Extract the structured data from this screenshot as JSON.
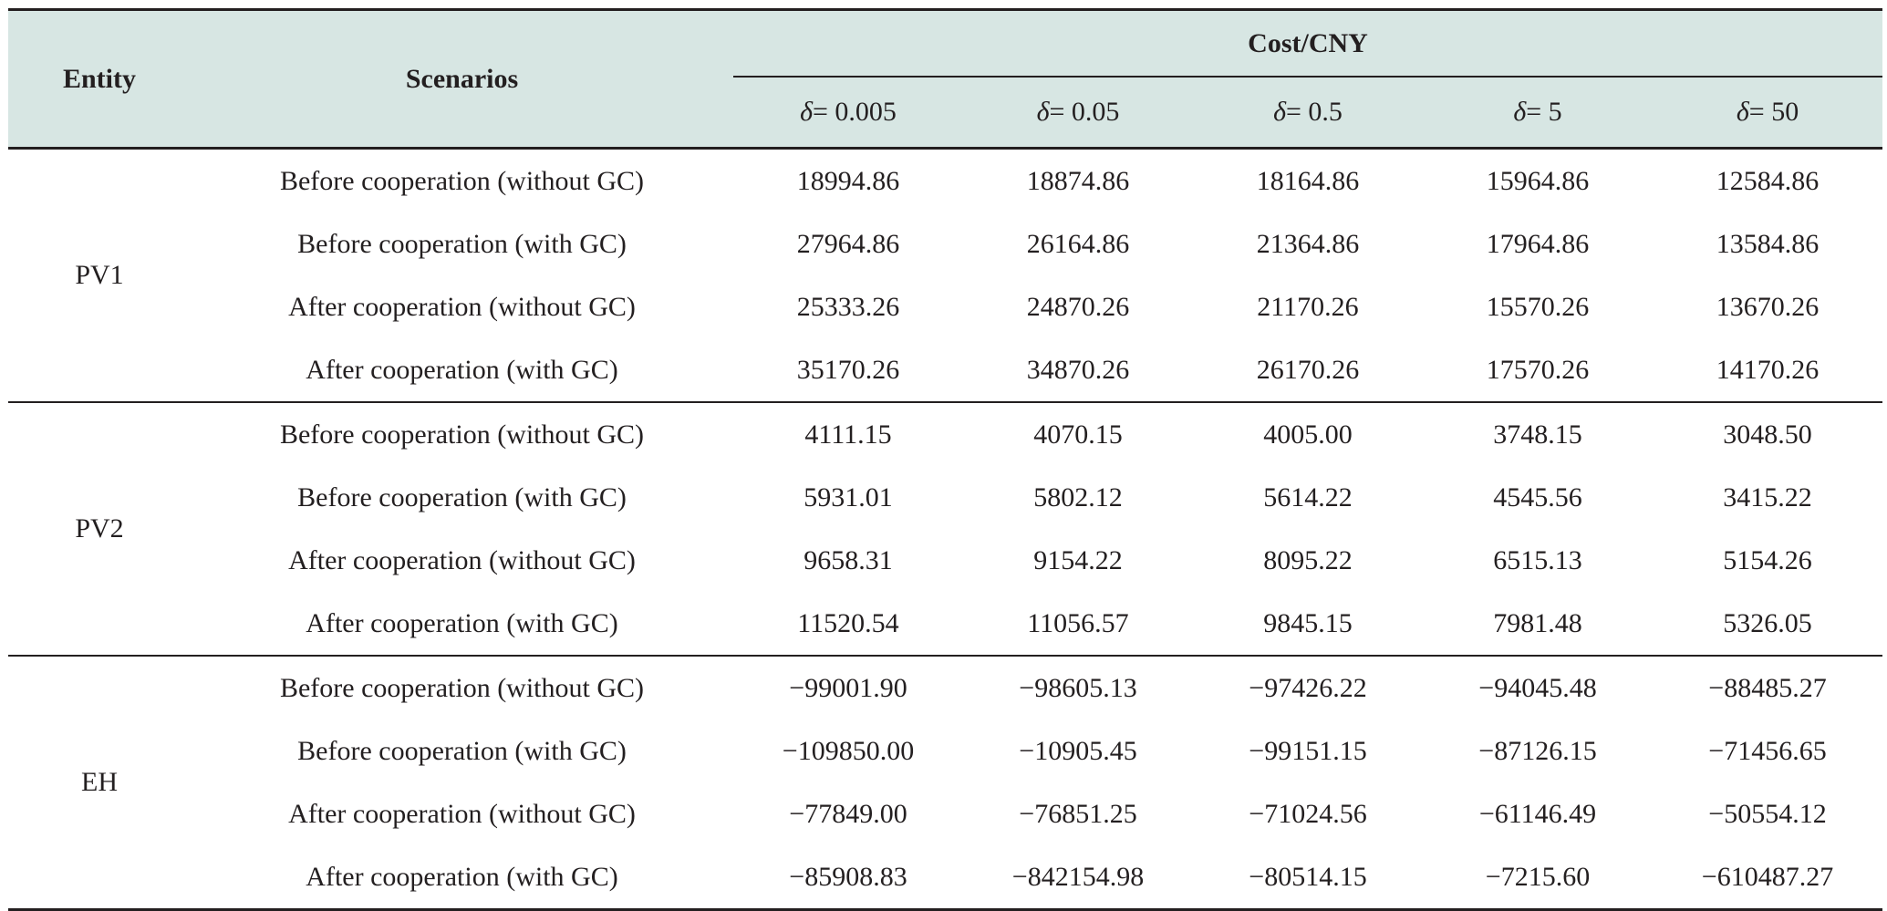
{
  "header": {
    "entity": "Entity",
    "scenarios": "Scenarios",
    "cost_group": "Cost/CNY",
    "delta_symbol": "δ",
    "deltas": [
      "= 0.005",
      "= 0.05",
      "= 0.5",
      "= 5",
      "= 50"
    ]
  },
  "groups": [
    {
      "entity": "PV1",
      "rows": [
        {
          "scenario": "Before cooperation (without GC)",
          "values": [
            "18994.86",
            "18874.86",
            "18164.86",
            "15964.86",
            "12584.86"
          ]
        },
        {
          "scenario": "Before cooperation (with GC)",
          "values": [
            "27964.86",
            "26164.86",
            "21364.86",
            "17964.86",
            "13584.86"
          ]
        },
        {
          "scenario": "After cooperation (without GC)",
          "values": [
            "25333.26",
            "24870.26",
            "21170.26",
            "15570.26",
            "13670.26"
          ]
        },
        {
          "scenario": "After cooperation (with GC)",
          "values": [
            "35170.26",
            "34870.26",
            "26170.26",
            "17570.26",
            "14170.26"
          ]
        }
      ]
    },
    {
      "entity": "PV2",
      "rows": [
        {
          "scenario": "Before cooperation (without GC)",
          "values": [
            "4111.15",
            "4070.15",
            "4005.00",
            "3748.15",
            "3048.50"
          ]
        },
        {
          "scenario": "Before cooperation (with GC)",
          "values": [
            "5931.01",
            "5802.12",
            "5614.22",
            "4545.56",
            "3415.22"
          ]
        },
        {
          "scenario": "After cooperation (without GC)",
          "values": [
            "9658.31",
            "9154.22",
            "8095.22",
            "6515.13",
            "5154.26"
          ]
        },
        {
          "scenario": "After cooperation (with GC)",
          "values": [
            "11520.54",
            "11056.57",
            "9845.15",
            "7981.48",
            "5326.05"
          ]
        }
      ]
    },
    {
      "entity": "EH",
      "rows": [
        {
          "scenario": "Before cooperation (without GC)",
          "values": [
            "−99001.90",
            "−98605.13",
            "−97426.22",
            "−94045.48",
            "−88485.27"
          ]
        },
        {
          "scenario": "Before cooperation (with GC)",
          "values": [
            "−109850.00",
            "−10905.45",
            "−99151.15",
            "−87126.15",
            "−71456.65"
          ]
        },
        {
          "scenario": "After cooperation (without GC)",
          "values": [
            "−77849.00",
            "−76851.25",
            "−71024.56",
            "−61146.49",
            "−50554.12"
          ]
        },
        {
          "scenario": "After cooperation (with GC)",
          "values": [
            "−85908.83",
            "−842154.98",
            "−80514.15",
            "−7215.60",
            "−610487.27"
          ]
        }
      ]
    }
  ]
}
